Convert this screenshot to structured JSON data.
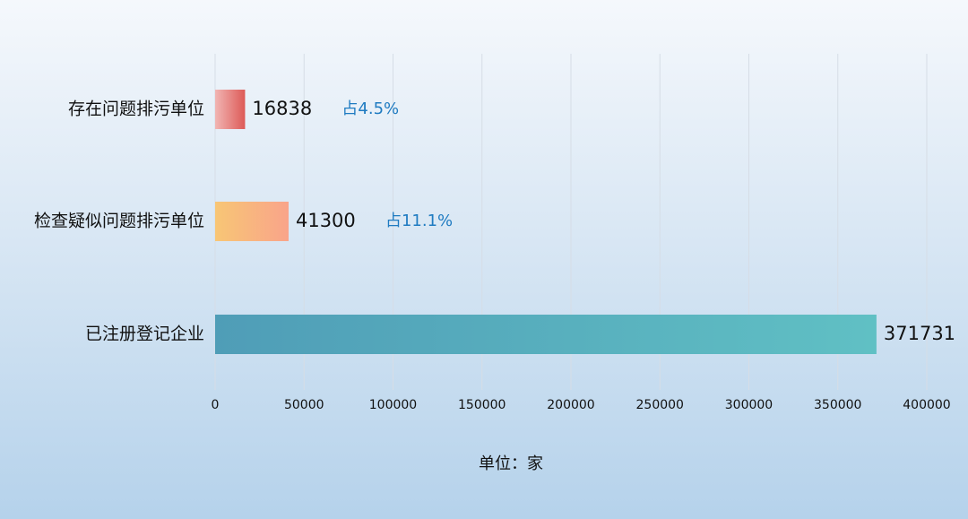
{
  "chart_data": {
    "type": "bar",
    "orientation": "horizontal",
    "categories": [
      "存在问题排污单位",
      "检查疑似问题排污单位",
      "已注册登记企业"
    ],
    "values": [
      16838,
      41300,
      371731
    ],
    "gradients": [
      [
        "#f1b5b3",
        "#dd5a57"
      ],
      [
        "#f8c675",
        "#f9a48a"
      ],
      [
        "#4f9db7",
        "#60c0c4"
      ]
    ],
    "annotations": [
      "占4.5%",
      "占11.1%"
    ],
    "annotation_color": "#1f7bc1",
    "xlim": [
      0,
      400000
    ],
    "xticks": [
      0,
      50000,
      100000,
      150000,
      200000,
      250000,
      300000,
      350000,
      400000
    ],
    "grid": true,
    "xlabel": "单位：家"
  }
}
